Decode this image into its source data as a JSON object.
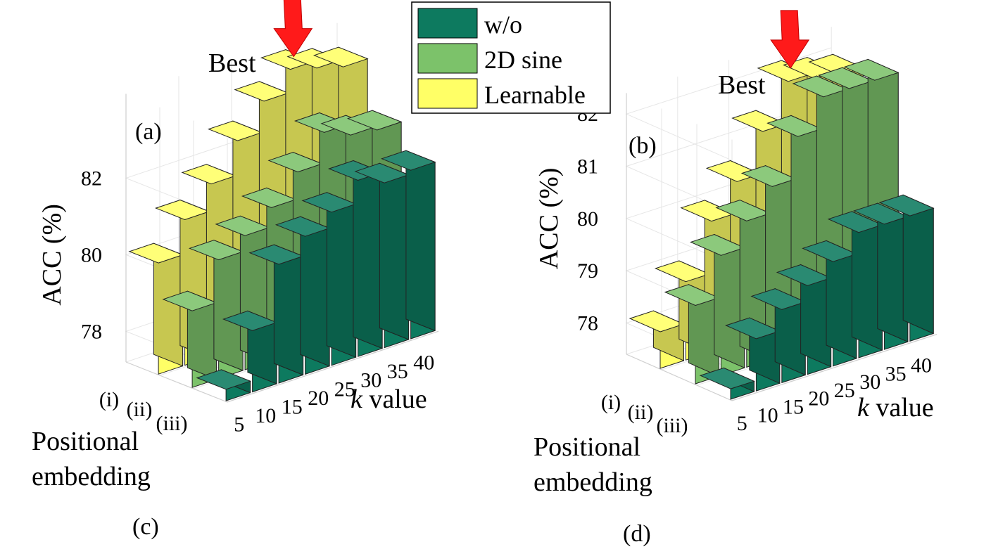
{
  "chart_data": [
    {
      "type": "bar3d",
      "panel_label": "(a)",
      "ylabel": "ACC (%)",
      "xlabel_var": "k",
      "xlabel_rest": " value",
      "zlabel_line1": "Positional",
      "zlabel_line2": "embedding",
      "categories": [
        "5",
        "10",
        "15",
        "20",
        "25",
        "30",
        "35",
        "40"
      ],
      "rows": [
        "(i)",
        "(ii)",
        "(iii)"
      ],
      "yticks": [
        "78",
        "80",
        "82"
      ],
      "ylim": [
        77.2,
        84.2
      ],
      "best_label": "Best",
      "series": [
        {
          "name": "w/o",
          "values": [
            77.5,
            78.8,
            80.3,
            80.8,
            81.2,
            81.8,
            81.5,
            81.6
          ]
        },
        {
          "name": "2D sine",
          "values": [
            79.2,
            80.3,
            80.7,
            81.2,
            81.9,
            82.7,
            82.4,
            82.3
          ]
        },
        {
          "name": "Learnable",
          "values": [
            80.1,
            81.0,
            81.7,
            82.6,
            83.4,
            84.0,
            83.8,
            83.6
          ]
        }
      ]
    },
    {
      "type": "bar3d",
      "panel_label": "(b)",
      "ylabel": "ACC (%)",
      "xlabel_var": "k",
      "xlabel_rest": " value",
      "zlabel_line1": "Positional",
      "zlabel_line2": "embedding",
      "categories": [
        "5",
        "10",
        "15",
        "20",
        "25",
        "30",
        "35",
        "40"
      ],
      "rows": [
        "(i)",
        "(ii)",
        "(iii)"
      ],
      "yticks": [
        "78",
        "79",
        "80",
        "81",
        "82"
      ],
      "ylim": [
        77.4,
        82.4
      ],
      "best_label": "Best",
      "series": [
        {
          "name": "w/o",
          "values": [
            77.6,
            78.4,
            78.8,
            79.1,
            79.4,
            79.8,
            79.8,
            79.8
          ]
        },
        {
          "name": "2D sine",
          "values": [
            78.9,
            79.7,
            80.2,
            80.7,
            81.5,
            82.1,
            82.1,
            82.1
          ]
        },
        {
          "name": "Learnable",
          "values": [
            78.1,
            78.9,
            79.9,
            80.5,
            81.3,
            82.1,
            82.0,
            81.9
          ]
        }
      ]
    }
  ],
  "legend": {
    "placement": "top-center",
    "items": [
      "w/o",
      "2D sine",
      "Learnable"
    ]
  },
  "colors": {
    "w/o": "#0d7a5f",
    "2D sine": "#7cc26a",
    "Learnable": "#ffff66",
    "arrow": "#ff1a1a"
  },
  "captions": [
    "(c)",
    "(d)"
  ]
}
